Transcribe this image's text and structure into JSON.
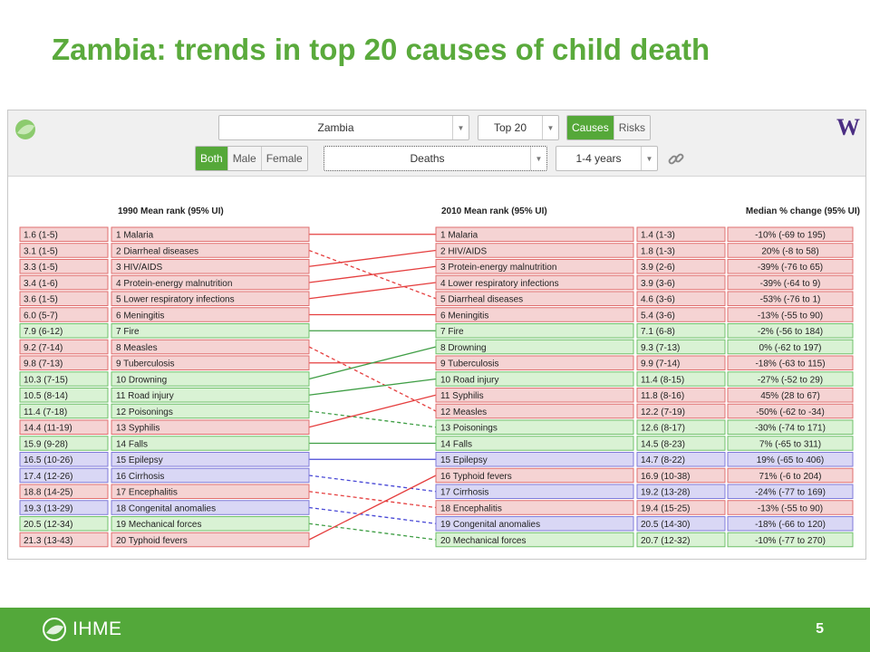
{
  "slide": {
    "title": "Zambia: trends in top 20 causes of child death",
    "page_number": "5",
    "footer_brand": "IHME"
  },
  "toolbar": {
    "country": "Zambia",
    "top_n": "Top 20",
    "view_tabs": [
      {
        "label": "Causes",
        "active": true
      },
      {
        "label": "Risks",
        "active": false
      }
    ],
    "sex_tabs": [
      {
        "label": "Both",
        "active": true
      },
      {
        "label": "Male",
        "active": false
      },
      {
        "label": "Female",
        "active": false
      }
    ],
    "measure": "Deaths",
    "age_group": "1-4 years"
  },
  "headers": {
    "rank1990": "1990 Mean rank (95% UI)",
    "rank2010": "2010 Mean rank (95% UI)",
    "change": "Median % change (95% UI)"
  },
  "colors": {
    "red": "#f5d3d3",
    "red_border": "#e06f6f",
    "red_line": "#e53f3f",
    "green": "#d9f2d4",
    "green_border": "#6fc06a",
    "green_line": "#3f9e45",
    "blue": "#d9d7f5",
    "blue_border": "#7f7ad9",
    "blue_line": "#4848d6"
  },
  "rows1990": [
    {
      "rank": "1.6 (1-5)",
      "cause": "1 Malaria",
      "cat": "red"
    },
    {
      "rank": "3.1 (1-5)",
      "cause": "2 Diarrheal diseases",
      "cat": "red"
    },
    {
      "rank": "3.3 (1-5)",
      "cause": "3 HIV/AIDS",
      "cat": "red"
    },
    {
      "rank": "3.4 (1-6)",
      "cause": "4 Protein-energy malnutrition",
      "cat": "red"
    },
    {
      "rank": "3.6 (1-5)",
      "cause": "5 Lower respiratory infections",
      "cat": "red"
    },
    {
      "rank": "6.0 (5-7)",
      "cause": "6 Meningitis",
      "cat": "red"
    },
    {
      "rank": "7.9 (6-12)",
      "cause": "7 Fire",
      "cat": "green"
    },
    {
      "rank": "9.2 (7-14)",
      "cause": "8 Measles",
      "cat": "red"
    },
    {
      "rank": "9.8 (7-13)",
      "cause": "9 Tuberculosis",
      "cat": "red"
    },
    {
      "rank": "10.3 (7-15)",
      "cause": "10 Drowning",
      "cat": "green"
    },
    {
      "rank": "10.5 (8-14)",
      "cause": "11 Road injury",
      "cat": "green"
    },
    {
      "rank": "11.4 (7-18)",
      "cause": "12 Poisonings",
      "cat": "green"
    },
    {
      "rank": "14.4 (11-19)",
      "cause": "13 Syphilis",
      "cat": "red"
    },
    {
      "rank": "15.9 (9-28)",
      "cause": "14 Falls",
      "cat": "green"
    },
    {
      "rank": "16.5 (10-26)",
      "cause": "15 Epilepsy",
      "cat": "blue"
    },
    {
      "rank": "17.4 (12-26)",
      "cause": "16 Cirrhosis",
      "cat": "blue"
    },
    {
      "rank": "18.8 (14-25)",
      "cause": "17 Encephalitis",
      "cat": "red"
    },
    {
      "rank": "19.3 (13-29)",
      "cause": "18 Congenital anomalies",
      "cat": "blue"
    },
    {
      "rank": "20.5 (12-34)",
      "cause": "19 Mechanical forces",
      "cat": "green"
    },
    {
      "rank": "21.3 (13-43)",
      "cause": "20 Typhoid fevers",
      "cat": "red"
    }
  ],
  "rows2010": [
    {
      "cause": "1 Malaria",
      "rank": "1.4 (1-3)",
      "change": "-10% (-69 to 195)",
      "cat": "red"
    },
    {
      "cause": "2 HIV/AIDS",
      "rank": "1.8 (1-3)",
      "change": "20% (-8 to 58)",
      "cat": "red"
    },
    {
      "cause": "3 Protein-energy malnutrition",
      "rank": "3.9 (2-6)",
      "change": "-39% (-76 to 65)",
      "cat": "red"
    },
    {
      "cause": "4 Lower respiratory infections",
      "rank": "3.9 (3-6)",
      "change": "-39% (-64 to 9)",
      "cat": "red"
    },
    {
      "cause": "5 Diarrheal diseases",
      "rank": "4.6 (3-6)",
      "change": "-53% (-76 to 1)",
      "cat": "red"
    },
    {
      "cause": "6 Meningitis",
      "rank": "5.4 (3-6)",
      "change": "-13% (-55 to 90)",
      "cat": "red"
    },
    {
      "cause": "7 Fire",
      "rank": "7.1 (6-8)",
      "change": "-2% (-56 to 184)",
      "cat": "green"
    },
    {
      "cause": "8 Drowning",
      "rank": "9.3 (7-13)",
      "change": "0% (-62 to 197)",
      "cat": "green"
    },
    {
      "cause": "9 Tuberculosis",
      "rank": "9.9 (7-14)",
      "change": "-18% (-63 to 115)",
      "cat": "red"
    },
    {
      "cause": "10 Road injury",
      "rank": "11.4 (8-15)",
      "change": "-27% (-52 to 29)",
      "cat": "green"
    },
    {
      "cause": "11 Syphilis",
      "rank": "11.8 (8-16)",
      "change": "45% (28 to 67)",
      "cat": "red"
    },
    {
      "cause": "12 Measles",
      "rank": "12.2 (7-19)",
      "change": "-50% (-62 to -34)",
      "cat": "red"
    },
    {
      "cause": "13 Poisonings",
      "rank": "12.6 (8-17)",
      "change": "-30% (-74 to 171)",
      "cat": "green"
    },
    {
      "cause": "14 Falls",
      "rank": "14.5 (8-23)",
      "change": "7% (-65 to 311)",
      "cat": "green"
    },
    {
      "cause": "15 Epilepsy",
      "rank": "14.7 (8-22)",
      "change": "19% (-65 to 406)",
      "cat": "blue"
    },
    {
      "cause": "16 Typhoid fevers",
      "rank": "16.9 (10-38)",
      "change": "71% (-6 to 204)",
      "cat": "red"
    },
    {
      "cause": "17 Cirrhosis",
      "rank": "19.2 (13-28)",
      "change": "-24% (-77 to 169)",
      "cat": "blue"
    },
    {
      "cause": "18 Encephalitis",
      "rank": "19.4 (15-25)",
      "change": "-13% (-55 to 90)",
      "cat": "red"
    },
    {
      "cause": "19 Congenital anomalies",
      "rank": "20.5 (14-30)",
      "change": "-18% (-66 to 120)",
      "cat": "blue"
    },
    {
      "cause": "20 Mechanical forces",
      "rank": "20.7 (12-32)",
      "change": "-10% (-77 to 270)",
      "cat": "green"
    }
  ],
  "links": [
    {
      "from": 1,
      "to": 1,
      "trend": "solid"
    },
    {
      "from": 2,
      "to": 5,
      "trend": "dashed"
    },
    {
      "from": 3,
      "to": 2,
      "trend": "solid"
    },
    {
      "from": 4,
      "to": 3,
      "trend": "solid"
    },
    {
      "from": 5,
      "to": 4,
      "trend": "solid"
    },
    {
      "from": 6,
      "to": 6,
      "trend": "solid"
    },
    {
      "from": 7,
      "to": 7,
      "trend": "solid"
    },
    {
      "from": 8,
      "to": 12,
      "trend": "dashed"
    },
    {
      "from": 9,
      "to": 9,
      "trend": "solid"
    },
    {
      "from": 10,
      "to": 8,
      "trend": "solid"
    },
    {
      "from": 11,
      "to": 10,
      "trend": "solid"
    },
    {
      "from": 12,
      "to": 13,
      "trend": "dashed"
    },
    {
      "from": 13,
      "to": 11,
      "trend": "solid"
    },
    {
      "from": 14,
      "to": 14,
      "trend": "solid"
    },
    {
      "from": 15,
      "to": 15,
      "trend": "solid"
    },
    {
      "from": 16,
      "to": 17,
      "trend": "dashed"
    },
    {
      "from": 17,
      "to": 18,
      "trend": "dashed"
    },
    {
      "from": 18,
      "to": 19,
      "trend": "dashed"
    },
    {
      "from": 19,
      "to": 20,
      "trend": "dashed"
    },
    {
      "from": 20,
      "to": 16,
      "trend": "solid"
    }
  ]
}
